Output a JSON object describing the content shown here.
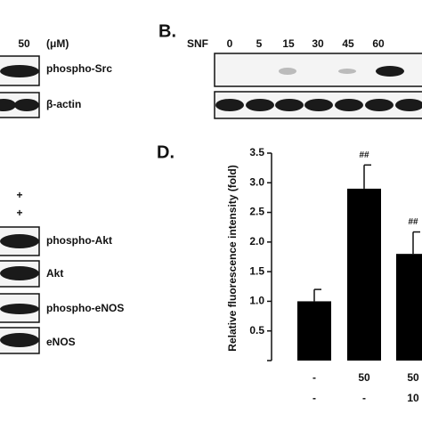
{
  "panel_a": {
    "dose": "50",
    "unit": "(μM)",
    "blots": [
      "phospho-Src",
      "β-actin"
    ]
  },
  "panel_b": {
    "label": "B.",
    "treatment": "SNF",
    "timepoints": [
      "0",
      "5",
      "15",
      "30",
      "45",
      "60"
    ]
  },
  "panel_c": {
    "signs": [
      "+",
      "+"
    ],
    "blots": [
      "phospho-Akt",
      "Akt",
      "phospho-eNOS",
      "eNOS"
    ]
  },
  "chart_data": {
    "type": "bar",
    "panel_label": "D.",
    "y_label": "Relative fluorescence intensity (fold)",
    "categories": [
      "-",
      "50",
      "50"
    ],
    "categories_row2": [
      "-",
      "-",
      "10"
    ],
    "values": [
      1.0,
      2.9,
      1.8
    ],
    "errors": [
      0.2,
      0.4,
      0.37
    ],
    "annotations": [
      null,
      "##",
      "##"
    ],
    "color": "#000000",
    "ylim": [
      0,
      3.5
    ],
    "yticks": [
      0.5,
      {
        "value": 1,
        "label": "1.0"
      },
      1.5,
      {
        "value": 2,
        "label": "2.0"
      },
      2.5,
      {
        "value": 3,
        "label": "3.0"
      },
      3.5
    ]
  }
}
